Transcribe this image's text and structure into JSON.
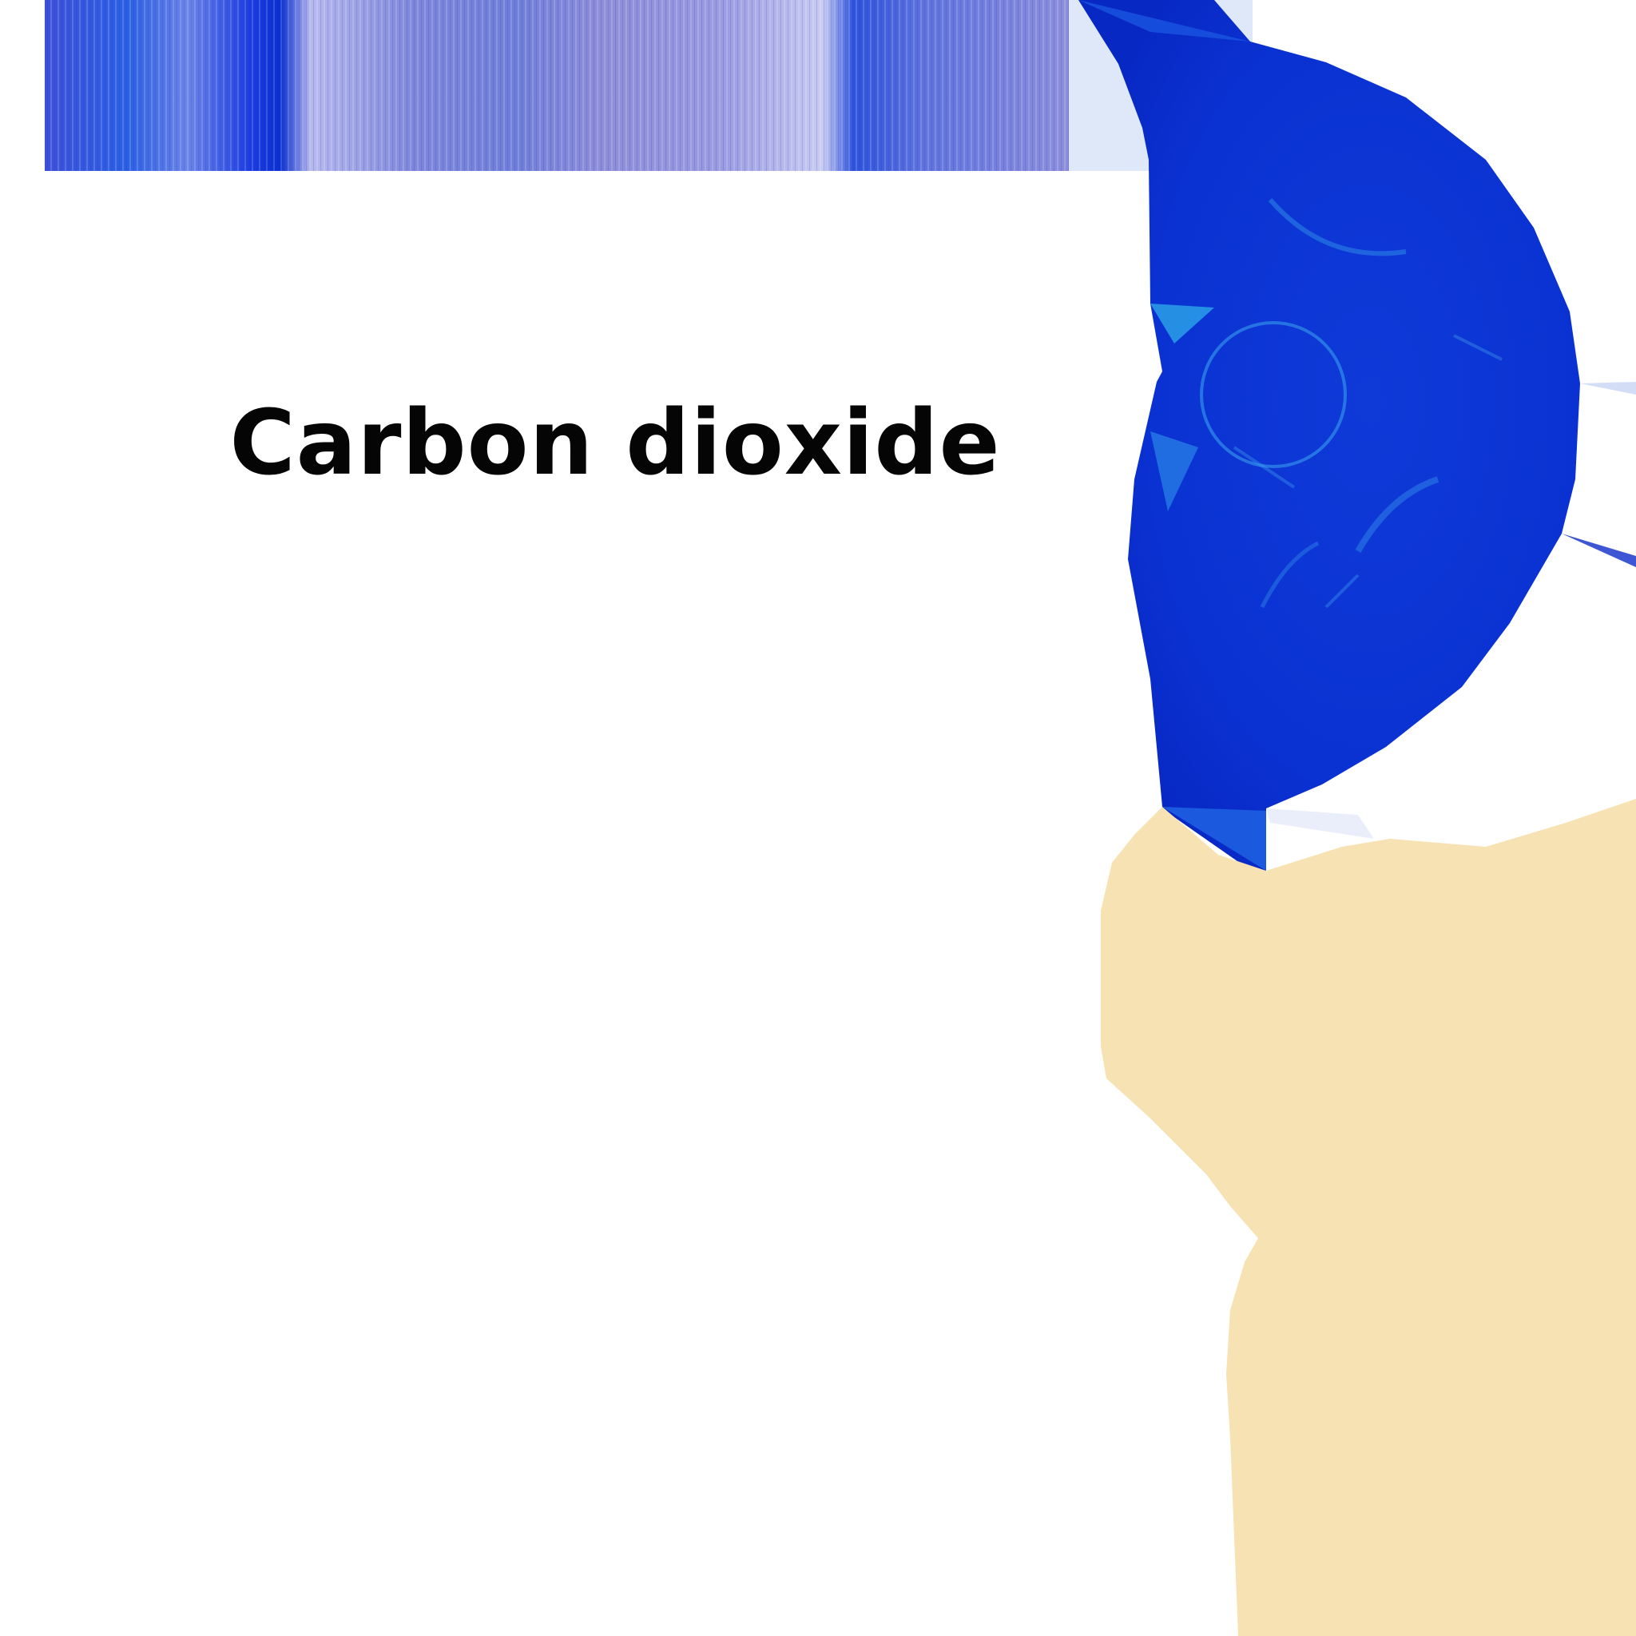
{
  "label": {
    "text": "Carbon dioxide"
  },
  "colors": {
    "background": "#ffffff",
    "text": "#050505",
    "deep_blue": "#0a2fd0",
    "mid_blue": "#1a55e0",
    "light_blue": "#2aa0e8",
    "pale_blue": "#dfe8f8",
    "lavender": "#8c8cd8",
    "beige": "#f7e2b4"
  },
  "illustration": {
    "subject": "carbon-dioxide-illustration",
    "elements": [
      "top-stripe-band",
      "blue-sphere",
      "beige-shape"
    ]
  }
}
